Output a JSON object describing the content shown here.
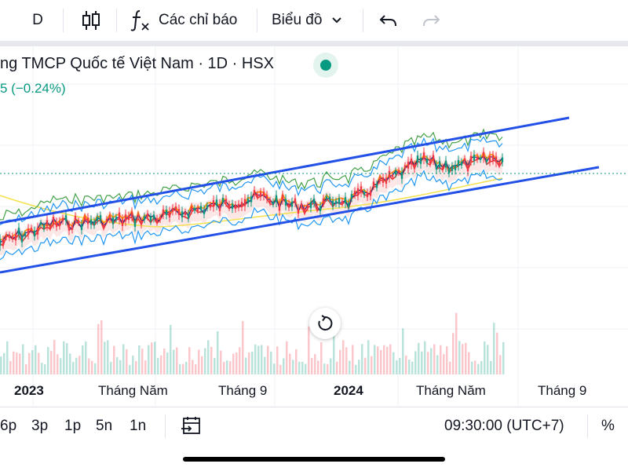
{
  "toolbar": {
    "interval": "D",
    "candle_icon": "candlestick-icon",
    "indicators_icon": "fx-icon",
    "indicators_label": "Các chỉ báo",
    "chart_type_label": "Biểu đồ",
    "chevron_icon": "chevron-down-icon",
    "undo_icon": "undo-icon",
    "redo_icon": "redo-icon"
  },
  "legend": {
    "title": "ng TMCP Quốc tế Việt Nam · 1D · HSX",
    "change": "5 (−0.24%)",
    "status": "market-open-dot"
  },
  "chart": {
    "reset_icon": "reset-icon",
    "colors": {
      "channel": "#2350e6",
      "up": "#089981",
      "down": "#f23645",
      "ma_orange": "#ff9800",
      "ma_red": "#e53935",
      "bollinger": "#2196f3",
      "lagging": "#43a047",
      "slow_ma": "#f5e154",
      "cloud": "#f8c9c9"
    }
  },
  "x_axis": {
    "labels": [
      "2023",
      "Tháng Năm",
      "Tháng 9",
      "2024",
      "Tháng Năm",
      "Tháng 9"
    ]
  },
  "bottom": {
    "ranges": [
      "6p",
      "3p",
      "1p",
      "5n",
      "1n"
    ],
    "goto_icon": "calendar-goto-icon",
    "time": "09:30:00 (UTC+7)",
    "percent": "%"
  }
}
